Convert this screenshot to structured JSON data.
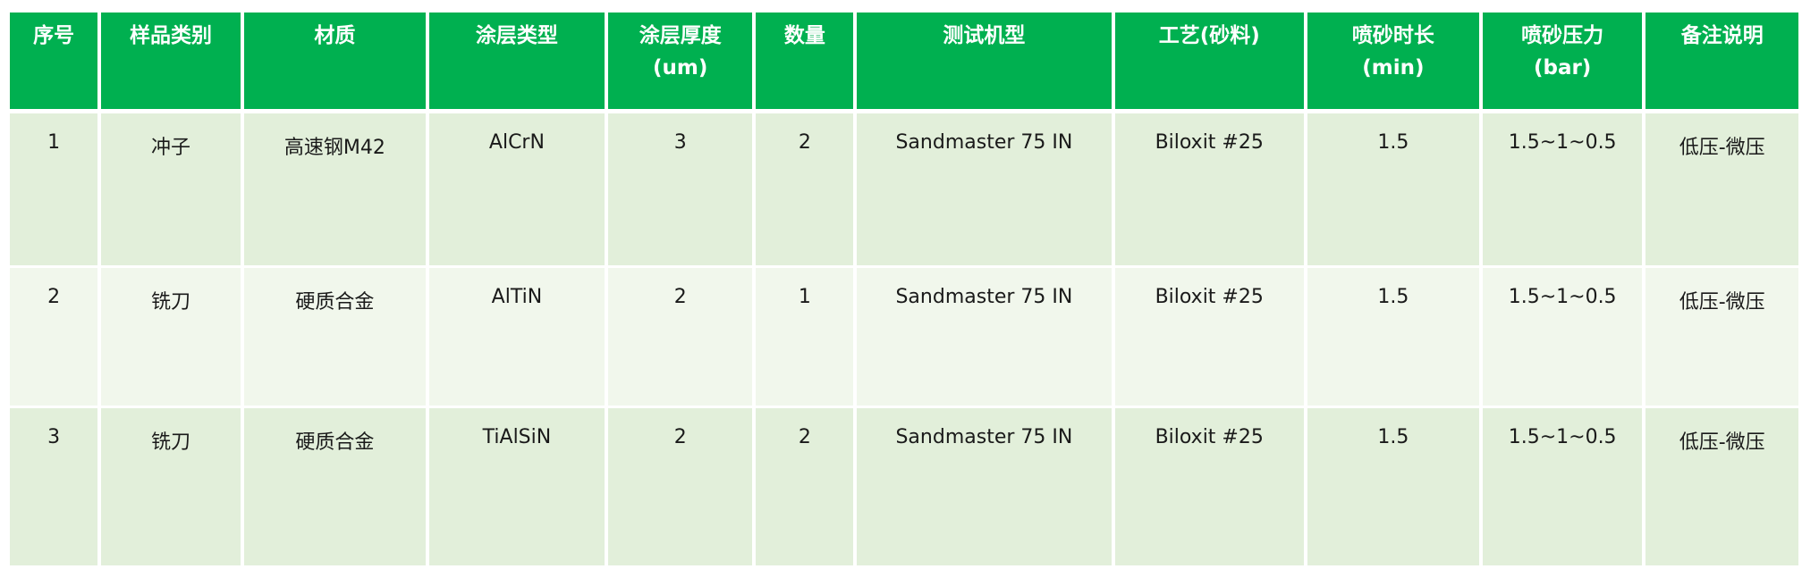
{
  "table": {
    "headers": [
      "序号",
      "样品类别",
      "材质",
      "涂层类型",
      "涂层厚度\n(um)",
      "数量",
      "测试机型",
      "工艺(砂料)",
      "喷砂时长\n(min)",
      "喷砂压力\n(bar)",
      "备注说明"
    ],
    "rows": [
      [
        "1",
        "冲子",
        "高速钢M42",
        "AlCrN",
        "3",
        "2",
        "Sandmaster 75 IN",
        "Biloxit #25",
        "1.5",
        "1.5~1~0.5",
        "低压-微压"
      ],
      [
        "2",
        "铣刀",
        "硬质合金",
        "AlTiN",
        "2",
        "1",
        "Sandmaster 75 IN",
        "Biloxit #25",
        "1.5",
        "1.5~1~0.5",
        "低压-微压"
      ],
      [
        "3",
        "铣刀",
        "硬质合金",
        "TiAlSiN",
        "2",
        "2",
        "Sandmaster 75 IN",
        "Biloxit #25",
        "1.5",
        "1.5~1~0.5",
        "低压-微压"
      ]
    ]
  },
  "colors": {
    "header_bg": "#00b050",
    "row_odd": "#e2efda",
    "row_even": "#f1f7ec"
  }
}
